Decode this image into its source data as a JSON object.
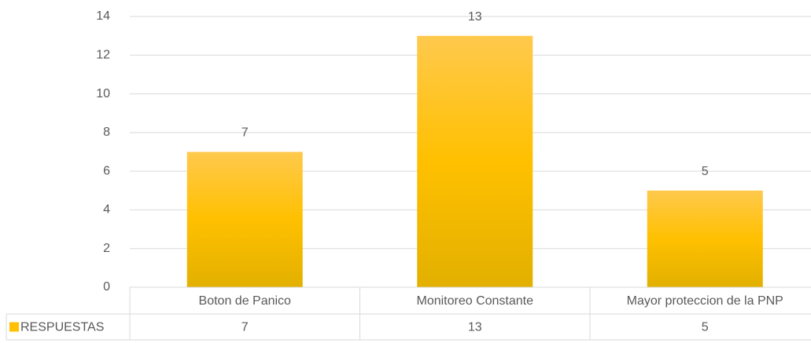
{
  "chart_data": {
    "type": "bar",
    "categories": [
      "Boton de Panico",
      "Monitoreo Constante",
      "Mayor proteccion de la PNP"
    ],
    "series": [
      {
        "name": "RESPUESTAS",
        "color": "#ffc000",
        "values": [
          7,
          13,
          5
        ]
      }
    ],
    "ylim": [
      0,
      14
    ],
    "yticks": [
      0,
      2,
      4,
      6,
      8,
      10,
      12,
      14
    ],
    "grid": true,
    "data_table": true
  }
}
